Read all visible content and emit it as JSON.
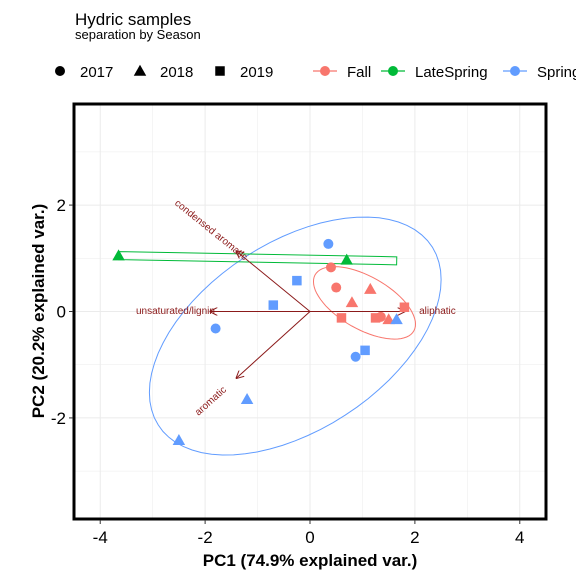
{
  "chart_data": {
    "type": "scatter",
    "title": "Hydric samples",
    "subtitle": "separation by Season",
    "xlabel": "PC1 (74.9% explained var.)",
    "ylabel": "PC2 (20.2% explained var.)",
    "xlim": [
      -4.5,
      4.5
    ],
    "ylim": [
      -3.9,
      3.9
    ],
    "xticks": [
      -4,
      -2,
      0,
      2,
      4
    ],
    "yticks": [
      -2,
      0,
      2
    ],
    "grid": true,
    "legend_position": "top",
    "shape_legend": [
      {
        "label": "2017",
        "shape": "circle"
      },
      {
        "label": "2018",
        "shape": "triangle"
      },
      {
        "label": "2019",
        "shape": "square"
      }
    ],
    "series": [
      {
        "name": "Fall",
        "color": "#F8766D",
        "points": [
          {
            "x": 0.4,
            "y": 0.83,
            "year": "2017"
          },
          {
            "x": 0.5,
            "y": 0.45,
            "year": "2017"
          },
          {
            "x": 1.35,
            "y": -0.1,
            "year": "2017"
          },
          {
            "x": 0.8,
            "y": 0.17,
            "year": "2018"
          },
          {
            "x": 1.15,
            "y": 0.42,
            "year": "2018"
          },
          {
            "x": 1.5,
            "y": -0.15,
            "year": "2018"
          },
          {
            "x": 0.6,
            "y": -0.12,
            "year": "2019"
          },
          {
            "x": 1.25,
            "y": -0.12,
            "year": "2019"
          },
          {
            "x": 1.8,
            "y": 0.08,
            "year": "2019"
          }
        ]
      },
      {
        "name": "LateSpring",
        "color": "#00BA38",
        "points": [
          {
            "x": -3.65,
            "y": 1.05,
            "year": "2018"
          },
          {
            "x": 0.7,
            "y": 0.97,
            "year": "2018"
          }
        ]
      },
      {
        "name": "Spring",
        "color": "#619CFF",
        "points": [
          {
            "x": 0.35,
            "y": 1.27,
            "year": "2017"
          },
          {
            "x": -1.8,
            "y": -0.32,
            "year": "2017"
          },
          {
            "x": 0.87,
            "y": -0.85,
            "year": "2017"
          },
          {
            "x": -1.2,
            "y": -1.65,
            "year": "2018"
          },
          {
            "x": -2.5,
            "y": -2.42,
            "year": "2018"
          },
          {
            "x": 1.65,
            "y": -0.15,
            "year": "2018"
          },
          {
            "x": -0.7,
            "y": 0.12,
            "year": "2019"
          },
          {
            "x": -0.25,
            "y": 0.58,
            "year": "2019"
          },
          {
            "x": 1.05,
            "y": -0.73,
            "year": "2019"
          }
        ]
      }
    ],
    "loadings": [
      {
        "label": "condensed aromatic",
        "x": -1.4,
        "y": 1.13
      },
      {
        "label": "unsaturated/lignin",
        "x": -1.9,
        "y": 0.0
      },
      {
        "label": "aromatic",
        "x": -1.4,
        "y": -1.25
      },
      {
        "label": "aliphatic",
        "x": 1.8,
        "y": 0.0
      }
    ]
  }
}
